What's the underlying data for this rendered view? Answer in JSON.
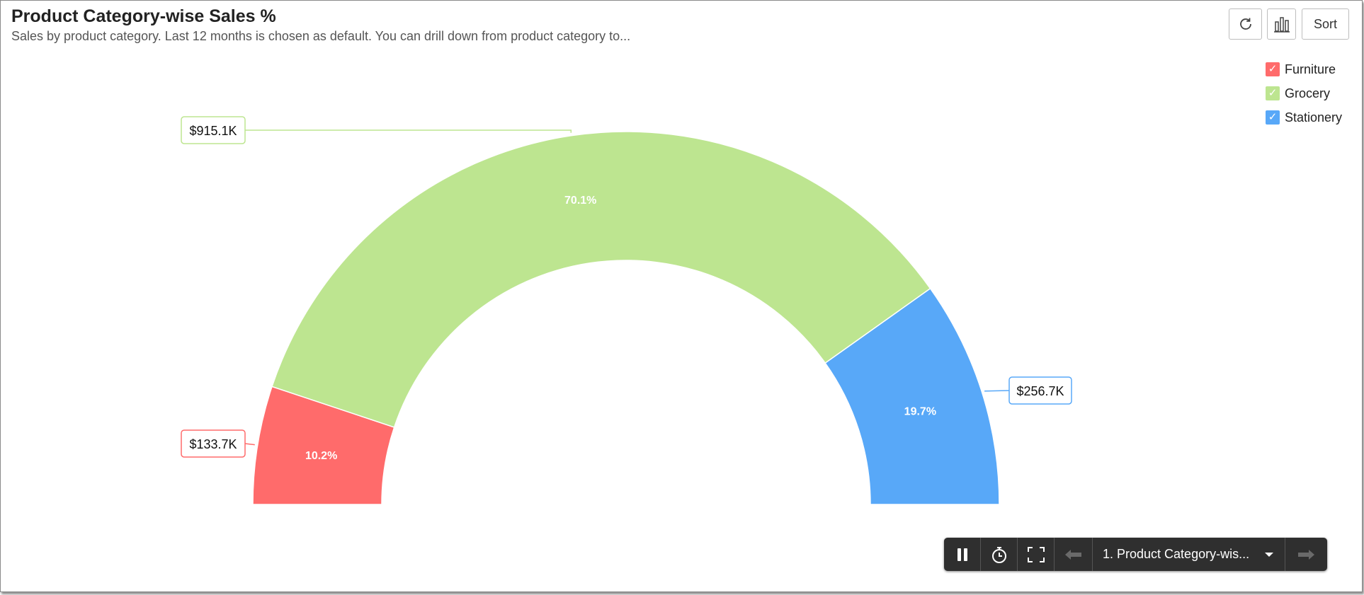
{
  "header": {
    "title": "Product Category-wise Sales %",
    "subtitle": "Sales by product category. Last 12 months is chosen as default. You can drill down from product category to..."
  },
  "toolbar": {
    "refresh_icon": "refresh-icon",
    "chart_type_icon": "bar-chart-icon",
    "sort_label": "Sort"
  },
  "legend": {
    "items": [
      {
        "label": "Furniture",
        "color": "#FF6B6B",
        "check": "✓"
      },
      {
        "label": "Grocery",
        "color": "#BDE590",
        "check": "✓"
      },
      {
        "label": "Stationery",
        "color": "#58A8F8",
        "check": "✓"
      }
    ]
  },
  "chart_data": {
    "type": "pie",
    "subtype": "semi-donut",
    "title": "Product Category-wise Sales %",
    "categories": [
      "Furniture",
      "Grocery",
      "Stationery"
    ],
    "values": [
      133.7,
      915.1,
      256.7
    ],
    "value_labels": [
      "$133.7K",
      "$915.1K",
      "$256.7K"
    ],
    "percent_labels": [
      "10.2%",
      "70.1%",
      "19.7%"
    ],
    "colors": [
      "#FF6B6B",
      "#BDE590",
      "#58A8F8"
    ],
    "legend_position": "top-right"
  },
  "player": {
    "pause_icon": "pause-icon",
    "timer_icon": "stopwatch-icon",
    "fullscreen_icon": "fullscreen-icon",
    "prev_icon": "arrow-left-icon",
    "next_icon": "arrow-right-icon",
    "current_slide": "1. Product Category-wis..."
  }
}
